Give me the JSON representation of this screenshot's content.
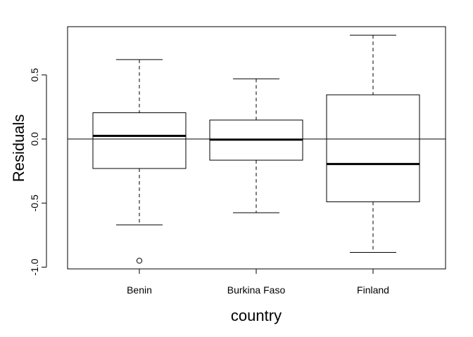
{
  "chart_data": {
    "type": "boxplot",
    "title": "",
    "xlabel": "country",
    "ylabel": "Residuals",
    "categories": [
      "Benin",
      "Burkina Faso",
      "Finland"
    ],
    "ylim": [
      -1.0,
      0.85
    ],
    "yticks": [
      -1.0,
      -0.5,
      0.0,
      0.5
    ],
    "ytick_labels": [
      "-1.0",
      "-0.5",
      "0.0",
      "0.5"
    ],
    "reference_line": 0.0,
    "boxes": [
      {
        "category": "Benin",
        "whisker_low": -0.67,
        "q1": -0.23,
        "median": 0.025,
        "q3": 0.205,
        "whisker_high": 0.62,
        "outliers": [
          -0.95
        ]
      },
      {
        "category": "Burkina Faso",
        "whisker_low": -0.575,
        "q1": -0.165,
        "median": -0.005,
        "q3": 0.148,
        "whisker_high": 0.47,
        "outliers": []
      },
      {
        "category": "Finland",
        "whisker_low": -0.885,
        "q1": -0.49,
        "median": -0.195,
        "q3": 0.345,
        "whisker_high": 0.81,
        "outliers": []
      }
    ],
    "grid": false,
    "legend": "none"
  }
}
